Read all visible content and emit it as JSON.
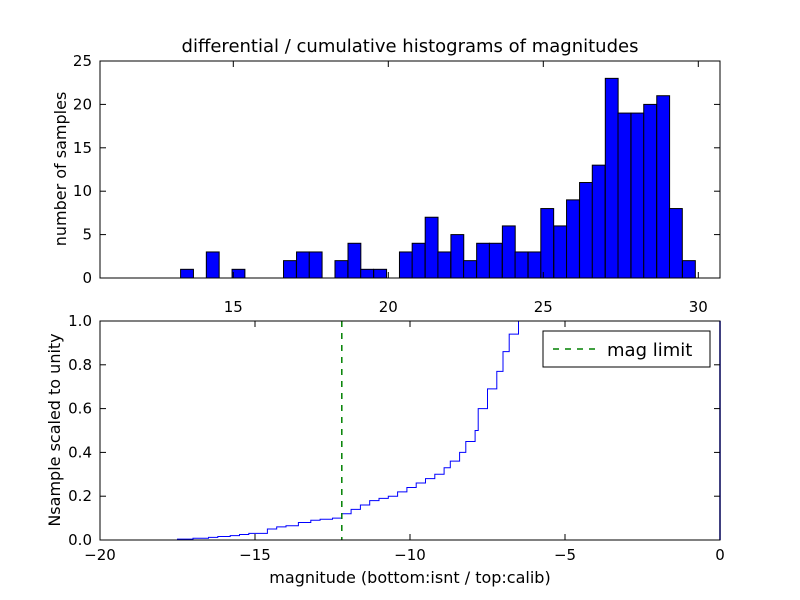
{
  "chart_data": [
    {
      "type": "bar",
      "title": "differential / cumulative histograms of magnitudes",
      "xlabel": "",
      "ylabel": "number of samples",
      "xlim": [
        10.7,
        30.7
      ],
      "ylim": [
        0,
        25
      ],
      "x_ticks": [
        "15",
        "20",
        "25",
        "30"
      ],
      "y_ticks": [
        "0",
        "5",
        "10",
        "15",
        "20",
        "25"
      ],
      "x_tick_position": "top-axis-labels-bottom",
      "bar_color": "#0000ff",
      "bin_width": 0.414,
      "bin_starts": [
        13.3,
        13.72,
        14.13,
        14.55,
        14.96,
        15.38,
        15.79,
        16.21,
        16.62,
        17.04,
        17.45,
        17.87,
        18.28,
        18.7,
        19.11,
        19.53,
        19.94,
        20.36,
        20.77,
        21.19,
        21.6,
        22.02,
        22.43,
        22.85,
        23.26,
        23.68,
        24.09,
        24.51,
        24.92,
        25.34,
        25.75,
        26.17,
        26.58,
        27.0,
        27.41,
        27.83,
        28.24,
        28.66,
        29.07,
        29.49
      ],
      "values": [
        1,
        0,
        3,
        0,
        1,
        0,
        0,
        0,
        2,
        3,
        3,
        0,
        2,
        4,
        1,
        1,
        0,
        3,
        4,
        7,
        3,
        5,
        2,
        4,
        4,
        6,
        3,
        3,
        8,
        6,
        9,
        11,
        13,
        23,
        19,
        19,
        20,
        21,
        8,
        2
      ],
      "grid": false
    },
    {
      "type": "line",
      "title": "",
      "xlabel": "magnitude (bottom:isnt / top:calib)",
      "ylabel": "Nsample scaled to unity",
      "xlim": [
        -20,
        0
      ],
      "ylim": [
        0,
        1.0
      ],
      "x_ticks": [
        "−20",
        "−15",
        "−10",
        "−5",
        "0"
      ],
      "y_ticks": [
        "0.0",
        "0.2",
        "0.4",
        "0.6",
        "0.8",
        "1.0"
      ],
      "grid": false,
      "legend_position": "top-right",
      "series": [
        {
          "name": "",
          "style": "step",
          "color": "#0000ff",
          "x": [
            -20,
            -17.5,
            -17.0,
            -16.5,
            -16.2,
            -15.8,
            -15.5,
            -15.2,
            -14.6,
            -14.3,
            -14.0,
            -13.6,
            -13.2,
            -12.9,
            -12.5,
            -12.2,
            -11.9,
            -11.6,
            -11.3,
            -11.0,
            -10.7,
            -10.4,
            -10.1,
            -9.8,
            -9.5,
            -9.2,
            -8.9,
            -8.7,
            -8.4,
            -8.2,
            -7.9,
            -7.8,
            -7.5,
            -7.2,
            -7.0,
            -6.8
          ],
          "y": [
            0.0,
            0.004,
            0.008,
            0.012,
            0.016,
            0.02,
            0.025,
            0.03,
            0.05,
            0.06,
            0.065,
            0.08,
            0.09,
            0.095,
            0.1,
            0.12,
            0.14,
            0.16,
            0.18,
            0.19,
            0.2,
            0.22,
            0.24,
            0.26,
            0.28,
            0.3,
            0.33,
            0.36,
            0.4,
            0.45,
            0.5,
            0.6,
            0.69,
            0.77,
            0.86,
            0.94
          ],
          "end": 1.0
        },
        {
          "name": "mag limit",
          "style": "dashed-vertical",
          "color": "#008000",
          "x_value": -12.2
        }
      ],
      "right_edge_marker": {
        "x": 0,
        "y_from": 0,
        "y_to": 1.0,
        "color": "#0000ff"
      }
    }
  ]
}
